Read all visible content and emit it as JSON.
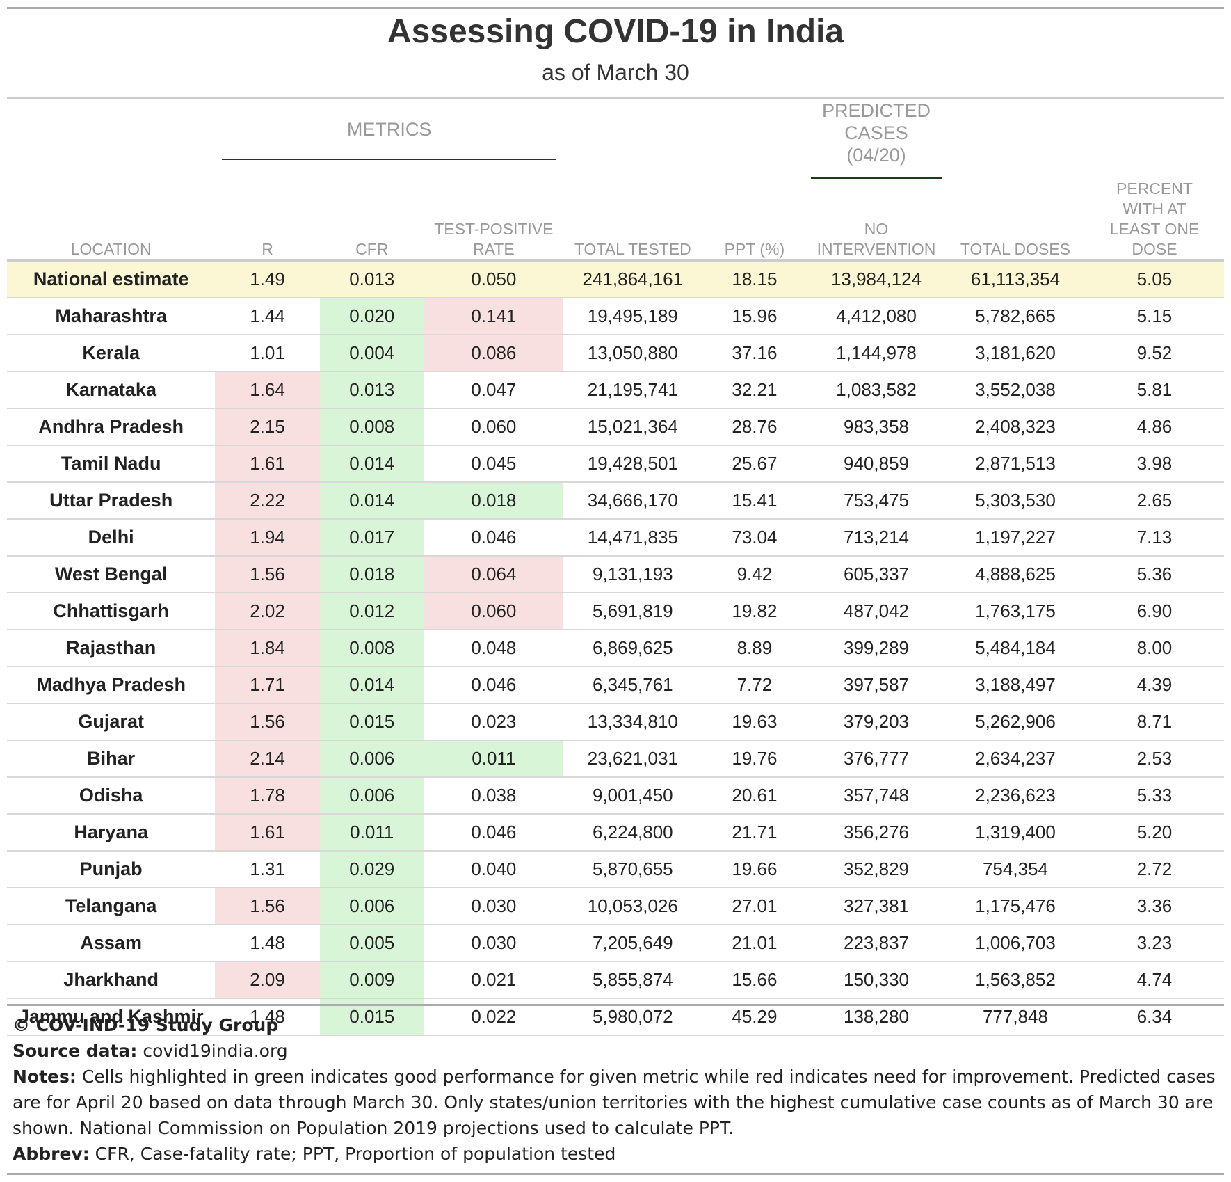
{
  "title": "Assessing COVID-19 in India",
  "subtitle": "as of March 30",
  "spanners": {
    "metrics": "METRICS",
    "predicted_line1": "PREDICTED",
    "predicted_line2": "CASES",
    "predicted_line3": "(04/20)"
  },
  "columns": {
    "location": "LOCATION",
    "r": "R",
    "cfr": "CFR",
    "tpr_line1": "TEST-POSITIVE",
    "tpr_line2": "RATE",
    "total_tested": "TOTAL TESTED",
    "ppt": "PPT (%)",
    "no_int_line1": "NO",
    "no_int_line2": "INTERVENTION",
    "total_doses": "TOTAL DOSES",
    "pct_line1": "PERCENT",
    "pct_line2": "WITH AT",
    "pct_line3": "LEAST ONE",
    "pct_line4": "DOSE"
  },
  "colors": {
    "national_highlight": "#fbf6d3",
    "red_highlight": "#f9e0e0",
    "green_highlight": "#d9f5d8"
  },
  "rows": [
    {
      "location": "National estimate",
      "r": "1.49",
      "cfr": "0.013",
      "tpr": "0.050",
      "total_tested": "241,864,161",
      "ppt": "18.15",
      "no_intervention": "13,984,124",
      "total_doses": "61,113,354",
      "pct_dose": "5.05",
      "r_color": "",
      "cfr_color": "",
      "tpr_color": ""
    },
    {
      "location": "Maharashtra",
      "r": "1.44",
      "cfr": "0.020",
      "tpr": "0.141",
      "total_tested": "19,495,189",
      "ppt": "15.96",
      "no_intervention": "4,412,080",
      "total_doses": "5,782,665",
      "pct_dose": "5.15",
      "r_color": "",
      "cfr_color": "green",
      "tpr_color": "red"
    },
    {
      "location": "Kerala",
      "r": "1.01",
      "cfr": "0.004",
      "tpr": "0.086",
      "total_tested": "13,050,880",
      "ppt": "37.16",
      "no_intervention": "1,144,978",
      "total_doses": "3,181,620",
      "pct_dose": "9.52",
      "r_color": "",
      "cfr_color": "green",
      "tpr_color": "red"
    },
    {
      "location": "Karnataka",
      "r": "1.64",
      "cfr": "0.013",
      "tpr": "0.047",
      "total_tested": "21,195,741",
      "ppt": "32.21",
      "no_intervention": "1,083,582",
      "total_doses": "3,552,038",
      "pct_dose": "5.81",
      "r_color": "red",
      "cfr_color": "green",
      "tpr_color": ""
    },
    {
      "location": "Andhra Pradesh",
      "r": "2.15",
      "cfr": "0.008",
      "tpr": "0.060",
      "total_tested": "15,021,364",
      "ppt": "28.76",
      "no_intervention": "983,358",
      "total_doses": "2,408,323",
      "pct_dose": "4.86",
      "r_color": "red",
      "cfr_color": "green",
      "tpr_color": ""
    },
    {
      "location": "Tamil Nadu",
      "r": "1.61",
      "cfr": "0.014",
      "tpr": "0.045",
      "total_tested": "19,428,501",
      "ppt": "25.67",
      "no_intervention": "940,859",
      "total_doses": "2,871,513",
      "pct_dose": "3.98",
      "r_color": "red",
      "cfr_color": "green",
      "tpr_color": ""
    },
    {
      "location": "Uttar Pradesh",
      "r": "2.22",
      "cfr": "0.014",
      "tpr": "0.018",
      "total_tested": "34,666,170",
      "ppt": "15.41",
      "no_intervention": "753,475",
      "total_doses": "5,303,530",
      "pct_dose": "2.65",
      "r_color": "red",
      "cfr_color": "green",
      "tpr_color": "green"
    },
    {
      "location": "Delhi",
      "r": "1.94",
      "cfr": "0.017",
      "tpr": "0.046",
      "total_tested": "14,471,835",
      "ppt": "73.04",
      "no_intervention": "713,214",
      "total_doses": "1,197,227",
      "pct_dose": "7.13",
      "r_color": "red",
      "cfr_color": "green",
      "tpr_color": ""
    },
    {
      "location": "West Bengal",
      "r": "1.56",
      "cfr": "0.018",
      "tpr": "0.064",
      "total_tested": "9,131,193",
      "ppt": "9.42",
      "no_intervention": "605,337",
      "total_doses": "4,888,625",
      "pct_dose": "5.36",
      "r_color": "red",
      "cfr_color": "green",
      "tpr_color": "red"
    },
    {
      "location": "Chhattisgarh",
      "r": "2.02",
      "cfr": "0.012",
      "tpr": "0.060",
      "total_tested": "5,691,819",
      "ppt": "19.82",
      "no_intervention": "487,042",
      "total_doses": "1,763,175",
      "pct_dose": "6.90",
      "r_color": "red",
      "cfr_color": "green",
      "tpr_color": "red"
    },
    {
      "location": "Rajasthan",
      "r": "1.84",
      "cfr": "0.008",
      "tpr": "0.048",
      "total_tested": "6,869,625",
      "ppt": "8.89",
      "no_intervention": "399,289",
      "total_doses": "5,484,184",
      "pct_dose": "8.00",
      "r_color": "red",
      "cfr_color": "green",
      "tpr_color": ""
    },
    {
      "location": "Madhya Pradesh",
      "r": "1.71",
      "cfr": "0.014",
      "tpr": "0.046",
      "total_tested": "6,345,761",
      "ppt": "7.72",
      "no_intervention": "397,587",
      "total_doses": "3,188,497",
      "pct_dose": "4.39",
      "r_color": "red",
      "cfr_color": "green",
      "tpr_color": ""
    },
    {
      "location": "Gujarat",
      "r": "1.56",
      "cfr": "0.015",
      "tpr": "0.023",
      "total_tested": "13,334,810",
      "ppt": "19.63",
      "no_intervention": "379,203",
      "total_doses": "5,262,906",
      "pct_dose": "8.71",
      "r_color": "red",
      "cfr_color": "green",
      "tpr_color": ""
    },
    {
      "location": "Bihar",
      "r": "2.14",
      "cfr": "0.006",
      "tpr": "0.011",
      "total_tested": "23,621,031",
      "ppt": "19.76",
      "no_intervention": "376,777",
      "total_doses": "2,634,237",
      "pct_dose": "2.53",
      "r_color": "red",
      "cfr_color": "green",
      "tpr_color": "green"
    },
    {
      "location": "Odisha",
      "r": "1.78",
      "cfr": "0.006",
      "tpr": "0.038",
      "total_tested": "9,001,450",
      "ppt": "20.61",
      "no_intervention": "357,748",
      "total_doses": "2,236,623",
      "pct_dose": "5.33",
      "r_color": "red",
      "cfr_color": "green",
      "tpr_color": ""
    },
    {
      "location": "Haryana",
      "r": "1.61",
      "cfr": "0.011",
      "tpr": "0.046",
      "total_tested": "6,224,800",
      "ppt": "21.71",
      "no_intervention": "356,276",
      "total_doses": "1,319,400",
      "pct_dose": "5.20",
      "r_color": "red",
      "cfr_color": "green",
      "tpr_color": ""
    },
    {
      "location": "Punjab",
      "r": "1.31",
      "cfr": "0.029",
      "tpr": "0.040",
      "total_tested": "5,870,655",
      "ppt": "19.66",
      "no_intervention": "352,829",
      "total_doses": "754,354",
      "pct_dose": "2.72",
      "r_color": "",
      "cfr_color": "green",
      "tpr_color": ""
    },
    {
      "location": "Telangana",
      "r": "1.56",
      "cfr": "0.006",
      "tpr": "0.030",
      "total_tested": "10,053,026",
      "ppt": "27.01",
      "no_intervention": "327,381",
      "total_doses": "1,175,476",
      "pct_dose": "3.36",
      "r_color": "red",
      "cfr_color": "green",
      "tpr_color": ""
    },
    {
      "location": "Assam",
      "r": "1.48",
      "cfr": "0.005",
      "tpr": "0.030",
      "total_tested": "7,205,649",
      "ppt": "21.01",
      "no_intervention": "223,837",
      "total_doses": "1,006,703",
      "pct_dose": "3.23",
      "r_color": "",
      "cfr_color": "green",
      "tpr_color": ""
    },
    {
      "location": "Jharkhand",
      "r": "2.09",
      "cfr": "0.009",
      "tpr": "0.021",
      "total_tested": "5,855,874",
      "ppt": "15.66",
      "no_intervention": "150,330",
      "total_doses": "1,563,852",
      "pct_dose": "4.74",
      "r_color": "red",
      "cfr_color": "green",
      "tpr_color": ""
    },
    {
      "location": "Jammu and Kashmir",
      "r": "1.48",
      "cfr": "0.015",
      "tpr": "0.022",
      "total_tested": "5,980,072",
      "ppt": "45.29",
      "no_intervention": "138,280",
      "total_doses": "777,848",
      "pct_dose": "6.34",
      "r_color": "",
      "cfr_color": "green",
      "tpr_color": ""
    }
  ],
  "footer": {
    "copyright": "© COV-IND-19 Study Group",
    "source_label": "Source data:",
    "source_value": " covid19india.org",
    "notes_label": "Notes:",
    "notes_value": " Cells highlighted in green indicates good performance for given metric while red indicates need for improvement. Predicted cases are for April 20 based on data through March 30. Only states/union territories with the highest cumulative case counts as of March 30 are shown. National Commission on Population 2019 projections used to calculate PPT.",
    "abbrev_label": "Abbrev:",
    "abbrev_value": " CFR, Case-fatality rate; PPT, Proportion of population tested"
  }
}
